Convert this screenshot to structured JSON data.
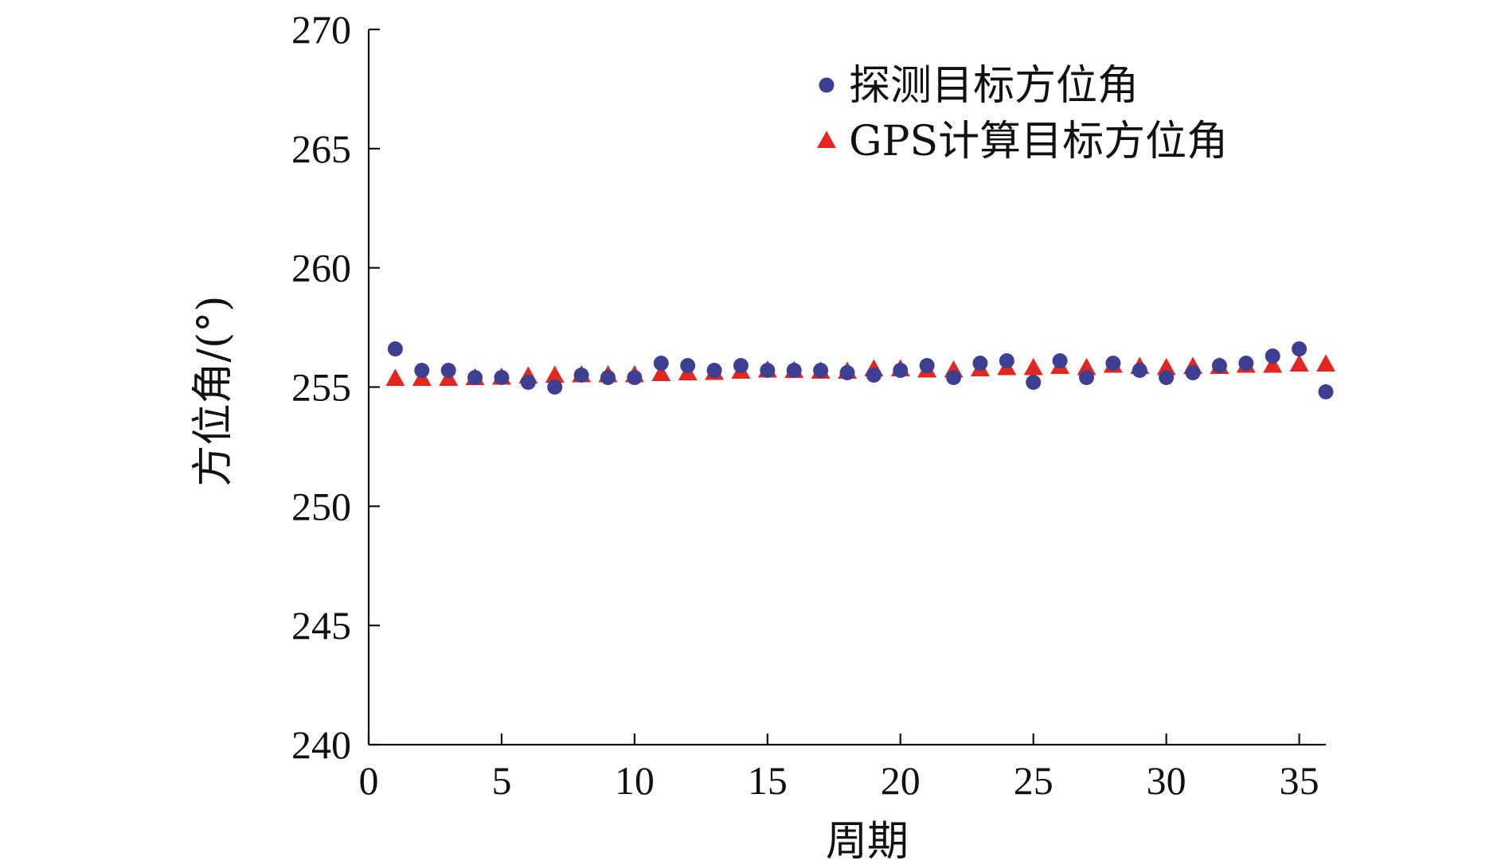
{
  "chart_data": {
    "type": "scatter",
    "title": "",
    "xlabel": "周期",
    "ylabel": "方位角/(°)",
    "xlim": [
      0,
      36
    ],
    "ylim": [
      240,
      270
    ],
    "xticks": [
      "0",
      "5",
      "10",
      "15",
      "20",
      "25",
      "30",
      "35"
    ],
    "yticks": [
      "240",
      "245",
      "250",
      "255",
      "260",
      "265",
      "270"
    ],
    "grid": false,
    "legend_position": "top-right",
    "series": [
      {
        "name": "探测目标方位角",
        "marker": "circle",
        "color": "#3d3f93",
        "x": [
          1,
          2,
          3,
          4,
          5,
          6,
          7,
          8,
          9,
          10,
          11,
          12,
          13,
          14,
          15,
          16,
          17,
          18,
          19,
          20,
          21,
          22,
          23,
          24,
          25,
          26,
          27,
          28,
          29,
          30,
          31,
          32,
          33,
          34,
          35,
          36
        ],
        "y": [
          256.6,
          255.7,
          255.7,
          255.4,
          255.4,
          255.2,
          255.0,
          255.5,
          255.4,
          255.4,
          256.0,
          255.9,
          255.7,
          255.9,
          255.7,
          255.7,
          255.7,
          255.6,
          255.5,
          255.7,
          255.9,
          255.4,
          256.0,
          256.1,
          255.2,
          256.1,
          255.4,
          256.0,
          255.7,
          255.4,
          255.6,
          255.9,
          256.0,
          256.3,
          256.6,
          254.8
        ]
      },
      {
        "name": "GPS计算目标方位角",
        "marker": "triangle",
        "color": "#e3261f",
        "x": [
          1,
          2,
          3,
          4,
          5,
          6,
          7,
          8,
          9,
          10,
          11,
          12,
          13,
          14,
          15,
          16,
          17,
          18,
          19,
          20,
          21,
          22,
          23,
          24,
          25,
          26,
          27,
          28,
          29,
          30,
          31,
          32,
          33,
          34,
          35,
          36
        ],
        "y": [
          255.35,
          255.35,
          255.35,
          255.38,
          255.4,
          255.45,
          255.48,
          255.5,
          255.5,
          255.5,
          255.55,
          255.58,
          255.6,
          255.65,
          255.7,
          255.68,
          255.65,
          255.65,
          255.75,
          255.75,
          255.7,
          255.7,
          255.75,
          255.8,
          255.8,
          255.85,
          255.8,
          255.9,
          255.85,
          255.8,
          255.85,
          255.85,
          255.9,
          255.9,
          255.95,
          255.95
        ]
      }
    ]
  }
}
